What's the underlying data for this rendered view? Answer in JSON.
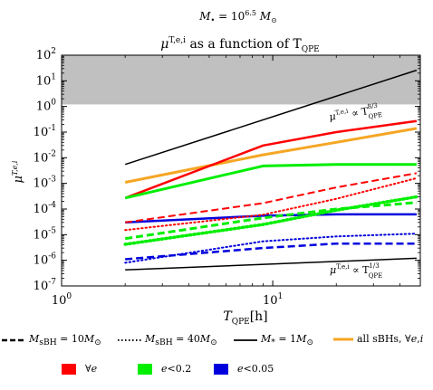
{
  "chart_data": {
    "type": "line",
    "suptitle": "M_• = 10^{6.5} M_⊙",
    "title": "μ^{T,e,i} as a function of T_QPE",
    "xlabel": "T_QPE[h]",
    "ylabel": "μ^{T,e,i}",
    "xscale": "log",
    "yscale": "log",
    "xlim": [
      1,
      50
    ],
    "ylim": [
      1e-07,
      100
    ],
    "x_ticklabels": [
      "10^0",
      "10^1"
    ],
    "y_ticklabels": [
      "10^-7",
      "10^-6",
      "10^-5",
      "10^-4",
      "10^-3",
      "10^-2",
      "10^-1",
      "10^0",
      "10^1",
      "10^2"
    ],
    "shaded_region": {
      "y_from": 1.2,
      "y_to": 100,
      "color": "#c0c0c0"
    },
    "annotations": [
      {
        "text": "μ^{T,e,i} ∝ T_QPE^{8/3}"
      },
      {
        "text": "μ^{T,e,i} ∝ T_QPE^{1/3}"
      }
    ],
    "series": [
      {
        "group": "all",
        "color": "#f5a623",
        "style": "solid",
        "width": 3,
        "x": [
          2,
          9,
          20,
          48
        ],
        "y": [
          0.0011,
          0.013,
          0.04,
          0.14
        ]
      },
      {
        "group": "all",
        "color": "#ff0000",
        "style": "solid",
        "width": 2.5,
        "x": [
          2,
          9,
          20,
          48
        ],
        "y": [
          0.00027,
          0.03,
          0.1,
          0.27
        ]
      },
      {
        "group": "all",
        "color": "#00ee00",
        "style": "solid",
        "width": 3,
        "x": [
          2,
          9,
          20,
          48
        ],
        "y": [
          0.00027,
          0.0048,
          0.0055,
          0.0055
        ]
      },
      {
        "group": "all",
        "color": "#0000dd",
        "style": "solid",
        "width": 2.5,
        "x": [
          2,
          9,
          20,
          48
        ],
        "y": [
          3e-05,
          5.5e-05,
          6.2e-05,
          6.2e-05
        ]
      },
      {
        "group": "sBH10",
        "color": "#ff0000",
        "style": "dashed",
        "width": 2,
        "x": [
          2,
          9,
          20,
          48
        ],
        "y": [
          3e-05,
          0.00017,
          0.0007,
          0.0025
        ]
      },
      {
        "group": "sBH10",
        "color": "#00ee00",
        "style": "dashed",
        "width": 3,
        "x": [
          2,
          9,
          20,
          48
        ],
        "y": [
          7e-06,
          4.5e-05,
          0.0001,
          0.00018
        ]
      },
      {
        "group": "sBH10",
        "color": "#0000dd",
        "style": "dashed",
        "width": 2.5,
        "x": [
          2,
          9,
          20,
          48
        ],
        "y": [
          1.1e-06,
          3e-06,
          4.5e-06,
          4.5e-06
        ]
      },
      {
        "group": "sBH40",
        "color": "#ff0000",
        "style": "dotted",
        "width": 2,
        "x": [
          2,
          9,
          20,
          48
        ],
        "y": [
          1.5e-05,
          6e-05,
          0.00025,
          0.0016
        ]
      },
      {
        "group": "sBH40",
        "color": "#00ee00",
        "style": "dotted",
        "width": 3.5,
        "x": [
          2,
          9,
          20,
          48
        ],
        "y": [
          4.2e-06,
          2.5e-05,
          9e-05,
          0.0003
        ]
      },
      {
        "group": "sBH40",
        "color": "#0000dd",
        "style": "dotted",
        "width": 2,
        "x": [
          2,
          9,
          20,
          48
        ],
        "y": [
          8e-07,
          5.5e-06,
          8.5e-06,
          1.1e-05
        ]
      },
      {
        "group": "star",
        "color": "#000000",
        "style": "solid",
        "width": 1.5,
        "x": [
          2,
          48
        ],
        "y": [
          0.0055,
          26
        ]
      },
      {
        "group": "star",
        "color": "#000000",
        "style": "solid",
        "width": 1.5,
        "x": [
          2,
          48
        ],
        "y": [
          4.2e-07,
          1.2e-06
        ]
      }
    ],
    "legend": {
      "lines": [
        {
          "label": "M_sBH = 10M_⊙",
          "style": "dashed",
          "color": "#000000"
        },
        {
          "label": "M_sBH = 40M_⊙",
          "style": "dotted",
          "color": "#000000"
        },
        {
          "label": "M_* = 1M_⊙",
          "style": "solid",
          "color": "#000000"
        },
        {
          "label": "all sBHs, ∀e,i",
          "style": "solid",
          "color": "#f5a623"
        }
      ],
      "boxes": [
        {
          "label": "∀e",
          "color": "#ff0000"
        },
        {
          "label": "e<0.2",
          "color": "#00ee00"
        },
        {
          "label": "e<0.05",
          "color": "#0000dd"
        }
      ]
    }
  }
}
